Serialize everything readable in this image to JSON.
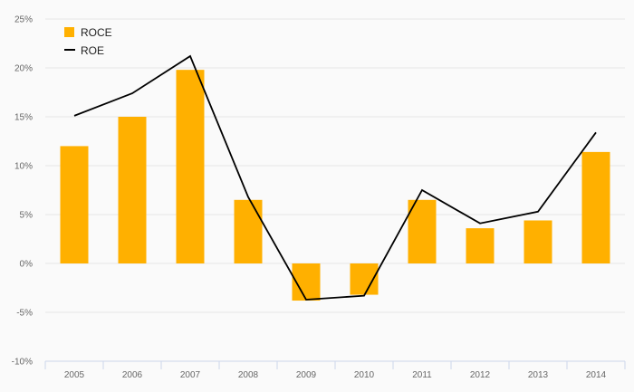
{
  "chart_data": {
    "type": "bar",
    "categories": [
      "2005",
      "2006",
      "2007",
      "2008",
      "2009",
      "2010",
      "2011",
      "2012",
      "2013",
      "2014"
    ],
    "series": [
      {
        "name": "ROCE",
        "type": "bar",
        "color": "#ffb000",
        "values": [
          12.0,
          15.0,
          19.8,
          6.5,
          -3.8,
          -3.2,
          6.5,
          3.6,
          4.4,
          11.4
        ]
      },
      {
        "name": "ROE",
        "type": "line",
        "color": "#000000",
        "values": [
          15.1,
          17.4,
          21.2,
          6.8,
          -3.7,
          -3.3,
          7.5,
          4.1,
          5.3,
          13.4
        ]
      }
    ],
    "ylim": [
      -10,
      25
    ],
    "yticks": [
      25,
      20,
      15,
      10,
      5,
      0,
      -5,
      -10
    ],
    "ytick_format": "{v}%",
    "grid": true,
    "legend": "top-left"
  }
}
